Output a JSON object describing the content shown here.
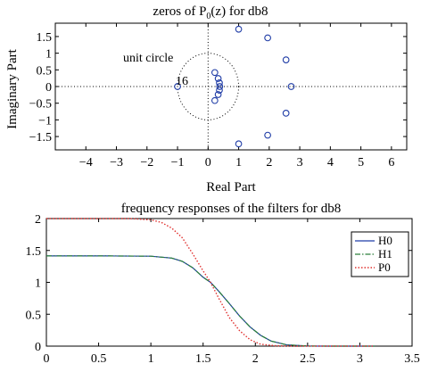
{
  "chart_data": [
    {
      "type": "scatter",
      "title": "zeros of P",
      "title_sub": "0",
      "title_tail": "(z) for db8",
      "xlabel": "Real Part",
      "ylabel": "Imaginary Part",
      "xlim": [
        -5,
        6.5
      ],
      "ylim": [
        -1.9,
        1.9
      ],
      "xticks": [
        -4,
        -3,
        -2,
        -1,
        0,
        1,
        2,
        3,
        4,
        5,
        6
      ],
      "yticks": [
        1.5,
        1,
        0.5,
        0,
        -0.5,
        -1,
        -1.5
      ],
      "xtick_labels": [
        "−4",
        "−3",
        "−2",
        "−1",
        "0",
        "1",
        "2",
        "3",
        "4",
        "5",
        "6"
      ],
      "ytick_labels": [
        "1.5",
        "1",
        "0.5",
        "0",
        "−0.5",
        "−1",
        "−1.5"
      ],
      "unit_circle_label": "unit circle",
      "multiplicity_label": "16",
      "marker": "circle",
      "marker_color": "#1f3ca6",
      "zeros": [
        {
          "x": 1.0,
          "y": 1.72
        },
        {
          "x": 1.0,
          "y": -1.72
        },
        {
          "x": 1.95,
          "y": 1.46
        },
        {
          "x": 1.95,
          "y": -1.46
        },
        {
          "x": 2.55,
          "y": 0.8
        },
        {
          "x": 2.55,
          "y": -0.8
        },
        {
          "x": 2.72,
          "y": 0.0
        },
        {
          "x": -1.0,
          "y": 0.0
        },
        {
          "x": 0.22,
          "y": 0.42
        },
        {
          "x": 0.22,
          "y": -0.42
        },
        {
          "x": 0.33,
          "y": 0.24
        },
        {
          "x": 0.33,
          "y": -0.24
        },
        {
          "x": 0.37,
          "y": 0.11
        },
        {
          "x": 0.37,
          "y": -0.11
        },
        {
          "x": 0.38,
          "y": 0.0
        }
      ]
    },
    {
      "type": "line",
      "title": "frequency responses of the filters for db8",
      "xlim": [
        0,
        3.5
      ],
      "ylim": [
        0,
        2
      ],
      "xticks": [
        0,
        0.5,
        1,
        1.5,
        2,
        2.5,
        3,
        3.5
      ],
      "yticks": [
        0,
        0.5,
        1,
        1.5,
        2
      ],
      "xtick_labels": [
        "0",
        "0.5",
        "1",
        "1.5",
        "2",
        "2.5",
        "3",
        "3.5"
      ],
      "ytick_labels": [
        "0",
        "0.5",
        "1",
        "1.5",
        "2"
      ],
      "legend_position": "top-right",
      "series": [
        {
          "name": "H0",
          "color": "#1f3ca6",
          "style": "solid",
          "x": [
            0,
            0.6,
            1.0,
            1.2,
            1.3,
            1.4,
            1.5,
            1.571,
            1.65,
            1.75,
            1.85,
            1.95,
            2.05,
            2.15,
            2.3,
            2.5,
            2.7,
            3.1416
          ],
          "y": [
            1.414,
            1.414,
            1.41,
            1.38,
            1.33,
            1.23,
            1.08,
            1.0,
            0.86,
            0.67,
            0.47,
            0.3,
            0.17,
            0.08,
            0.02,
            0.002,
            0.0,
            0.0
          ]
        },
        {
          "name": "H1",
          "color": "#2a7f3a",
          "style": "dashdot",
          "x": [
            0,
            0.6,
            1.0,
            1.2,
            1.3,
            1.4,
            1.5,
            1.571,
            1.65,
            1.75,
            1.85,
            1.95,
            2.05,
            2.15,
            2.3,
            2.5,
            2.7,
            3.1416
          ],
          "y": [
            1.414,
            1.414,
            1.41,
            1.38,
            1.33,
            1.23,
            1.08,
            1.0,
            0.86,
            0.67,
            0.47,
            0.3,
            0.17,
            0.08,
            0.02,
            0.002,
            0.0,
            0.0
          ]
        },
        {
          "name": "P0",
          "color": "#e0312f",
          "style": "dotted",
          "x": [
            0,
            0.8,
            1.0,
            1.1,
            1.2,
            1.3,
            1.4,
            1.5,
            1.571,
            1.65,
            1.75,
            1.85,
            1.95,
            2.05,
            2.2,
            2.4,
            3.1416
          ],
          "y": [
            2.0,
            2.0,
            1.98,
            1.94,
            1.85,
            1.7,
            1.45,
            1.18,
            1.0,
            0.75,
            0.45,
            0.24,
            0.1,
            0.03,
            0.005,
            0.0,
            0.0
          ]
        }
      ]
    }
  ]
}
